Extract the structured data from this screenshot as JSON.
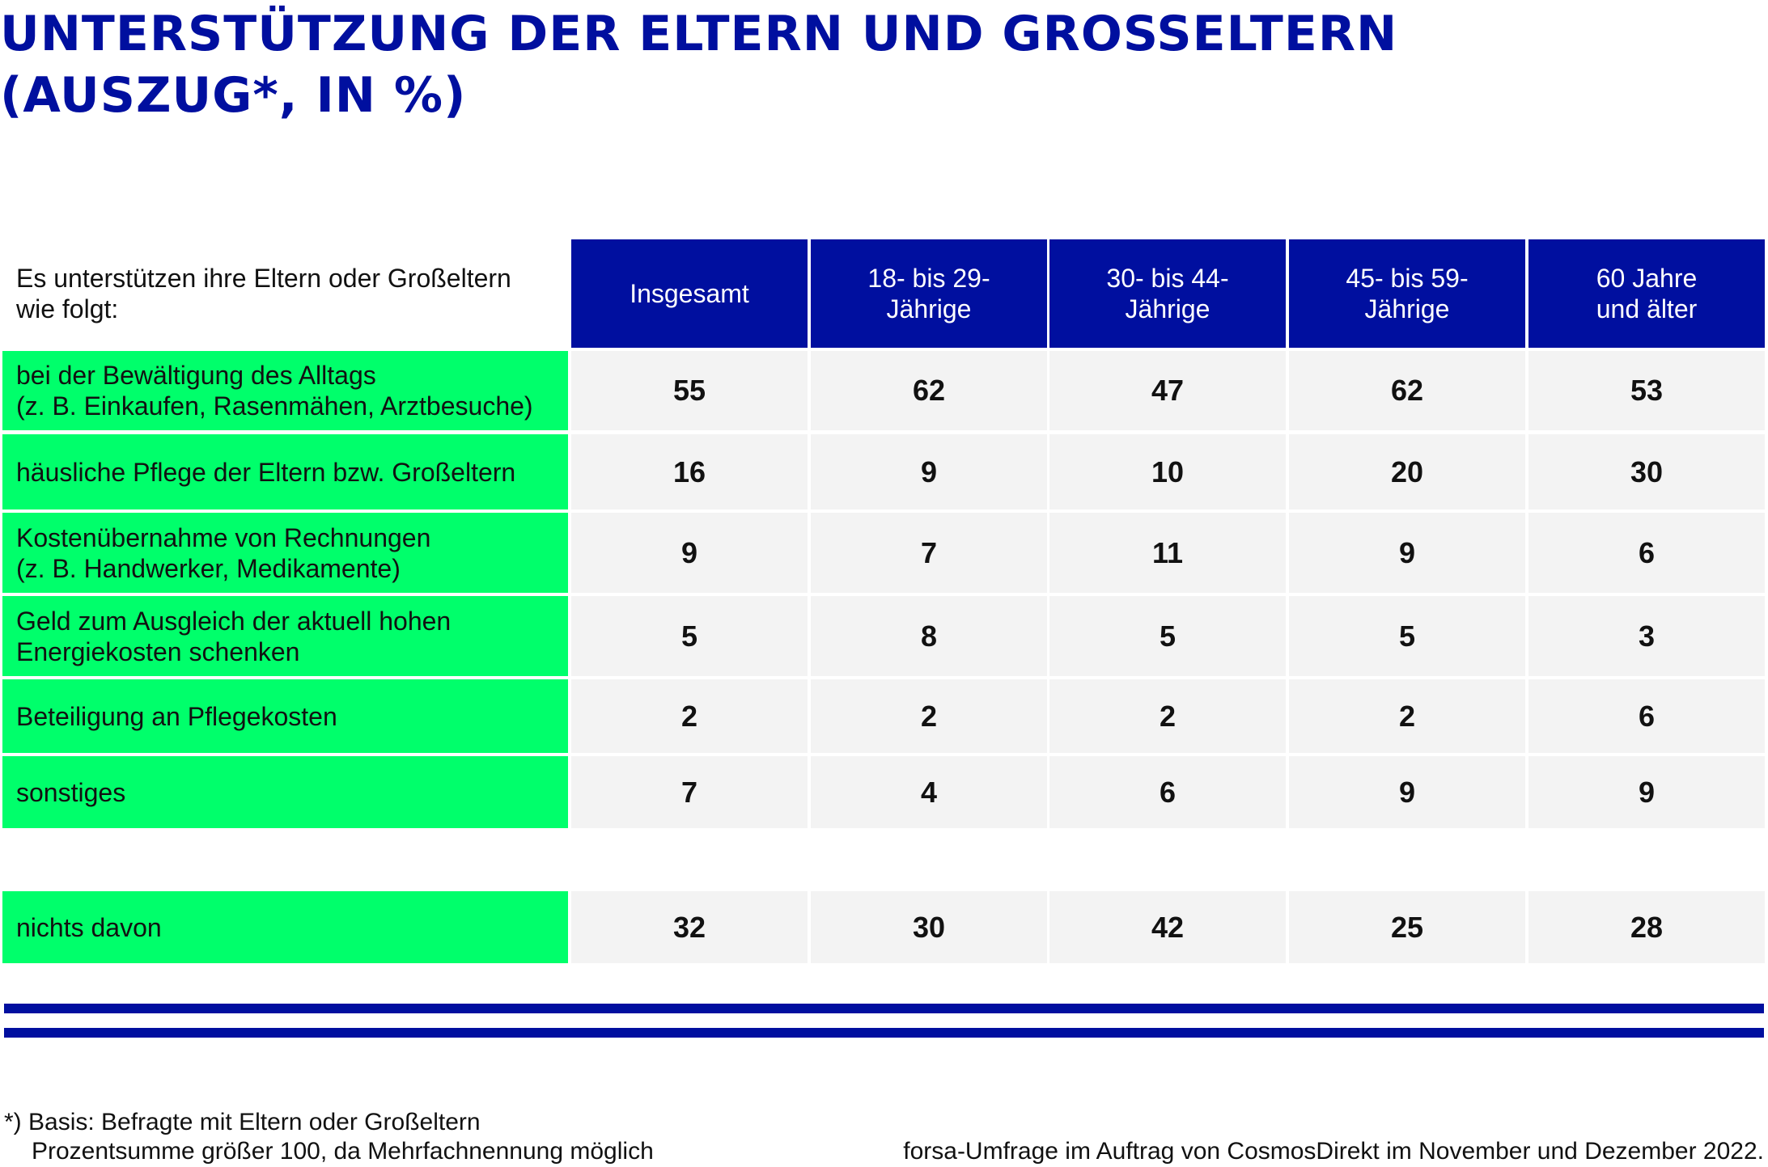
{
  "title": "UNTERSTÜTZUNG DER ELTERN UND GROSSELTERN\n(AUSZUG*, IN %)",
  "colors": {
    "accent": "#000f9f",
    "label_bg": "#00ff6b",
    "value_bg": "#f3f3f3"
  },
  "chart_data": {
    "type": "table",
    "corner_label": "Es unterstützen ihre Eltern oder Großeltern\nwie folgt:",
    "columns": [
      "Insgesamt",
      "18- bis 29-\nJährige",
      "30- bis 44-\nJährige",
      "45- bis 59-\nJährige",
      "60 Jahre\nund älter"
    ],
    "rows": [
      {
        "label": "bei der Bewältigung des Alltags\n(z. B. Einkaufen, Rasenmähen, Arztbesuche)",
        "values": [
          55,
          62,
          47,
          62,
          53
        ]
      },
      {
        "label": "häusliche Pflege der Eltern bzw. Großeltern",
        "values": [
          16,
          9,
          10,
          20,
          30
        ]
      },
      {
        "label": "Kostenübernahme von Rechnungen\n(z. B. Handwerker, Medikamente)",
        "values": [
          9,
          7,
          11,
          9,
          6
        ]
      },
      {
        "label": "Geld zum Ausgleich der aktuell hohen\nEnergiekosten schenken",
        "values": [
          5,
          8,
          5,
          5,
          3
        ]
      },
      {
        "label": "Beteiligung an Pflegekosten",
        "values": [
          2,
          2,
          2,
          2,
          6
        ]
      },
      {
        "label": "sonstiges",
        "values": [
          7,
          4,
          6,
          9,
          9
        ]
      }
    ],
    "summary_row": {
      "label": "nichts davon",
      "values": [
        32,
        30,
        42,
        25,
        28
      ]
    }
  },
  "footer": {
    "note_line1": "*) Basis: Befragte mit Eltern oder Großeltern",
    "note_line2": "Prozentsumme größer 100, da Mehrfachnennung möglich",
    "source": "forsa-Umfrage im Auftrag von CosmosDirekt im November und Dezember 2022."
  }
}
